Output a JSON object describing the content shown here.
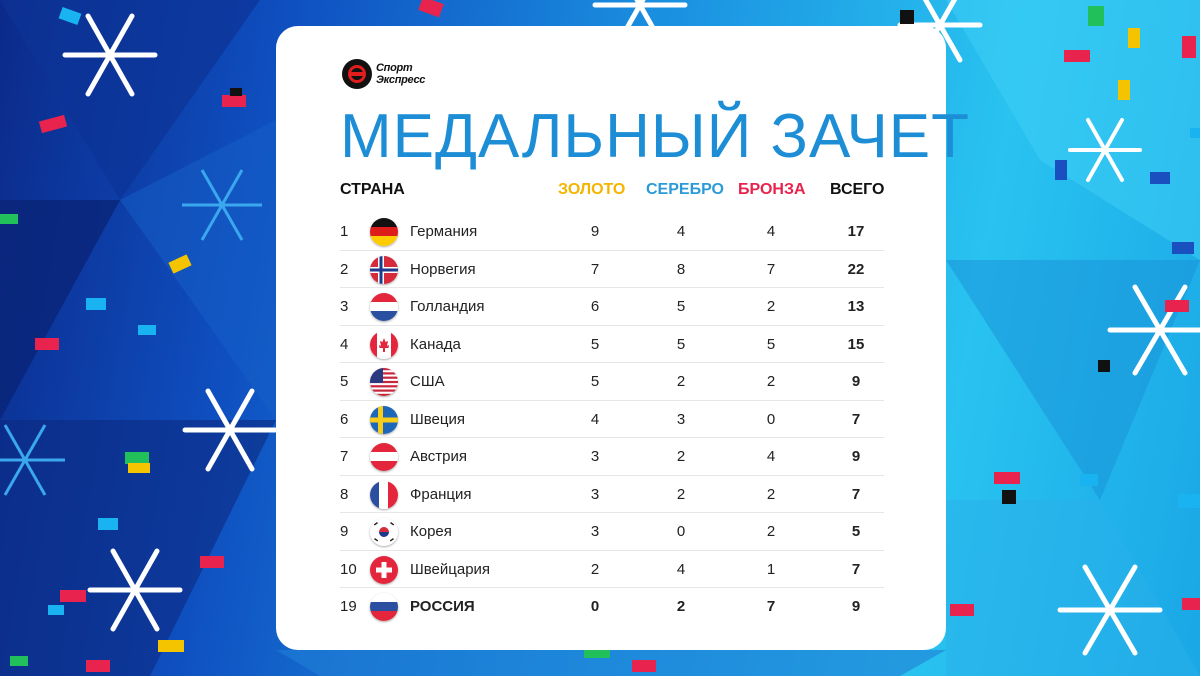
{
  "brand": {
    "line1": "Спорт",
    "line2": "Экспресс"
  },
  "title": "МЕДАЛЬНЫЙ ЗАЧЕТ",
  "headers": {
    "country": "СТРАНА",
    "gold": "ЗОЛОТО",
    "silver": "СЕРЕБРО",
    "bronze": "БРОНЗА",
    "total": "ВСЕГО"
  },
  "colors": {
    "gold": "#f5b400",
    "silver": "#2a9bd8",
    "bronze": "#e8244e",
    "title": "#1d8ed6"
  },
  "rows": [
    {
      "rank": "1",
      "country": "Германия",
      "gold": "9",
      "silver": "4",
      "bronze": "4",
      "total": "17",
      "flag": "germany-flag-icon"
    },
    {
      "rank": "2",
      "country": "Норвегия",
      "gold": "7",
      "silver": "8",
      "bronze": "7",
      "total": "22",
      "flag": "norway-flag-icon"
    },
    {
      "rank": "3",
      "country": "Голландия",
      "gold": "6",
      "silver": "5",
      "bronze": "2",
      "total": "13",
      "flag": "netherlands-flag-icon"
    },
    {
      "rank": "4",
      "country": "Канада",
      "gold": "5",
      "silver": "5",
      "bronze": "5",
      "total": "15",
      "flag": "canada-flag-icon"
    },
    {
      "rank": "5",
      "country": "США",
      "gold": "5",
      "silver": "2",
      "bronze": "2",
      "total": "9",
      "flag": "usa-flag-icon"
    },
    {
      "rank": "6",
      "country": "Швеция",
      "gold": "4",
      "silver": "3",
      "bronze": "0",
      "total": "7",
      "flag": "sweden-flag-icon"
    },
    {
      "rank": "7",
      "country": "Австрия",
      "gold": "3",
      "silver": "2",
      "bronze": "4",
      "total": "9",
      "flag": "austria-flag-icon"
    },
    {
      "rank": "8",
      "country": "Франция",
      "gold": "3",
      "silver": "2",
      "bronze": "2",
      "total": "7",
      "flag": "france-flag-icon"
    },
    {
      "rank": "9",
      "country": "Корея",
      "gold": "3",
      "silver": "0",
      "bronze": "2",
      "total": "5",
      "flag": "korea-flag-icon"
    },
    {
      "rank": "10",
      "country": "Швейцария",
      "gold": "2",
      "silver": "4",
      "bronze": "1",
      "total": "7",
      "flag": "switzerland-flag-icon"
    },
    {
      "rank": "19",
      "country": "РОССИЯ",
      "gold": "0",
      "silver": "2",
      "bronze": "7",
      "total": "9",
      "flag": "russia-flag-icon",
      "highlight": true
    }
  ]
}
